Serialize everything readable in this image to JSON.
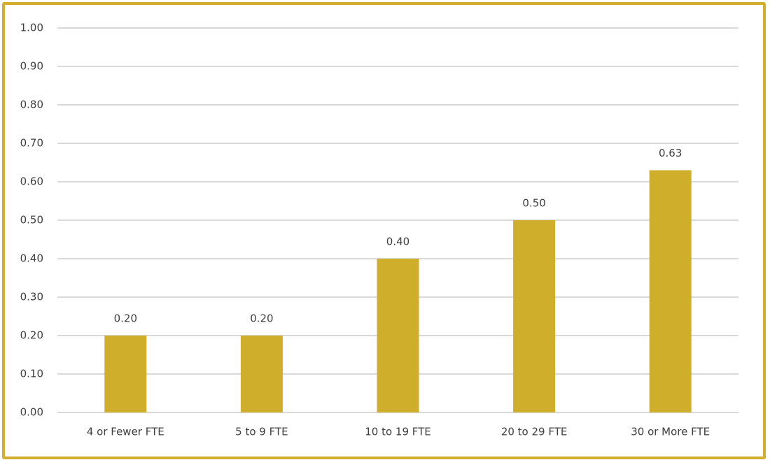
{
  "chart_data": {
    "type": "bar",
    "categories": [
      "4 or Fewer FTE",
      "5 to 9 FTE",
      "10 to 19 FTE",
      "20 to 29 FTE",
      "30 or More FTE"
    ],
    "values": [
      0.2,
      0.2,
      0.4,
      0.5,
      0.63
    ],
    "value_labels": [
      "0.20",
      "0.20",
      "0.40",
      "0.50",
      "0.63"
    ],
    "color": "#cfae2b",
    "ylim": [
      0,
      1
    ],
    "yticks": [
      {
        "value": 0,
        "label": "0.00"
      },
      {
        "value": 0.1,
        "label": "0.10"
      },
      {
        "value": 0.2,
        "label": "0.20"
      },
      {
        "value": 0.3,
        "label": "0.30"
      },
      {
        "value": 0.4,
        "label": "0.40"
      },
      {
        "value": 0.5,
        "label": "0.50"
      },
      {
        "value": 0.6,
        "label": "0.60"
      },
      {
        "value": 0.7,
        "label": "0.70"
      },
      {
        "value": 0.8,
        "label": "0.80"
      },
      {
        "value": 0.9,
        "label": "0.90"
      },
      {
        "value": 1,
        "label": "1.00"
      }
    ],
    "grid": true
  }
}
